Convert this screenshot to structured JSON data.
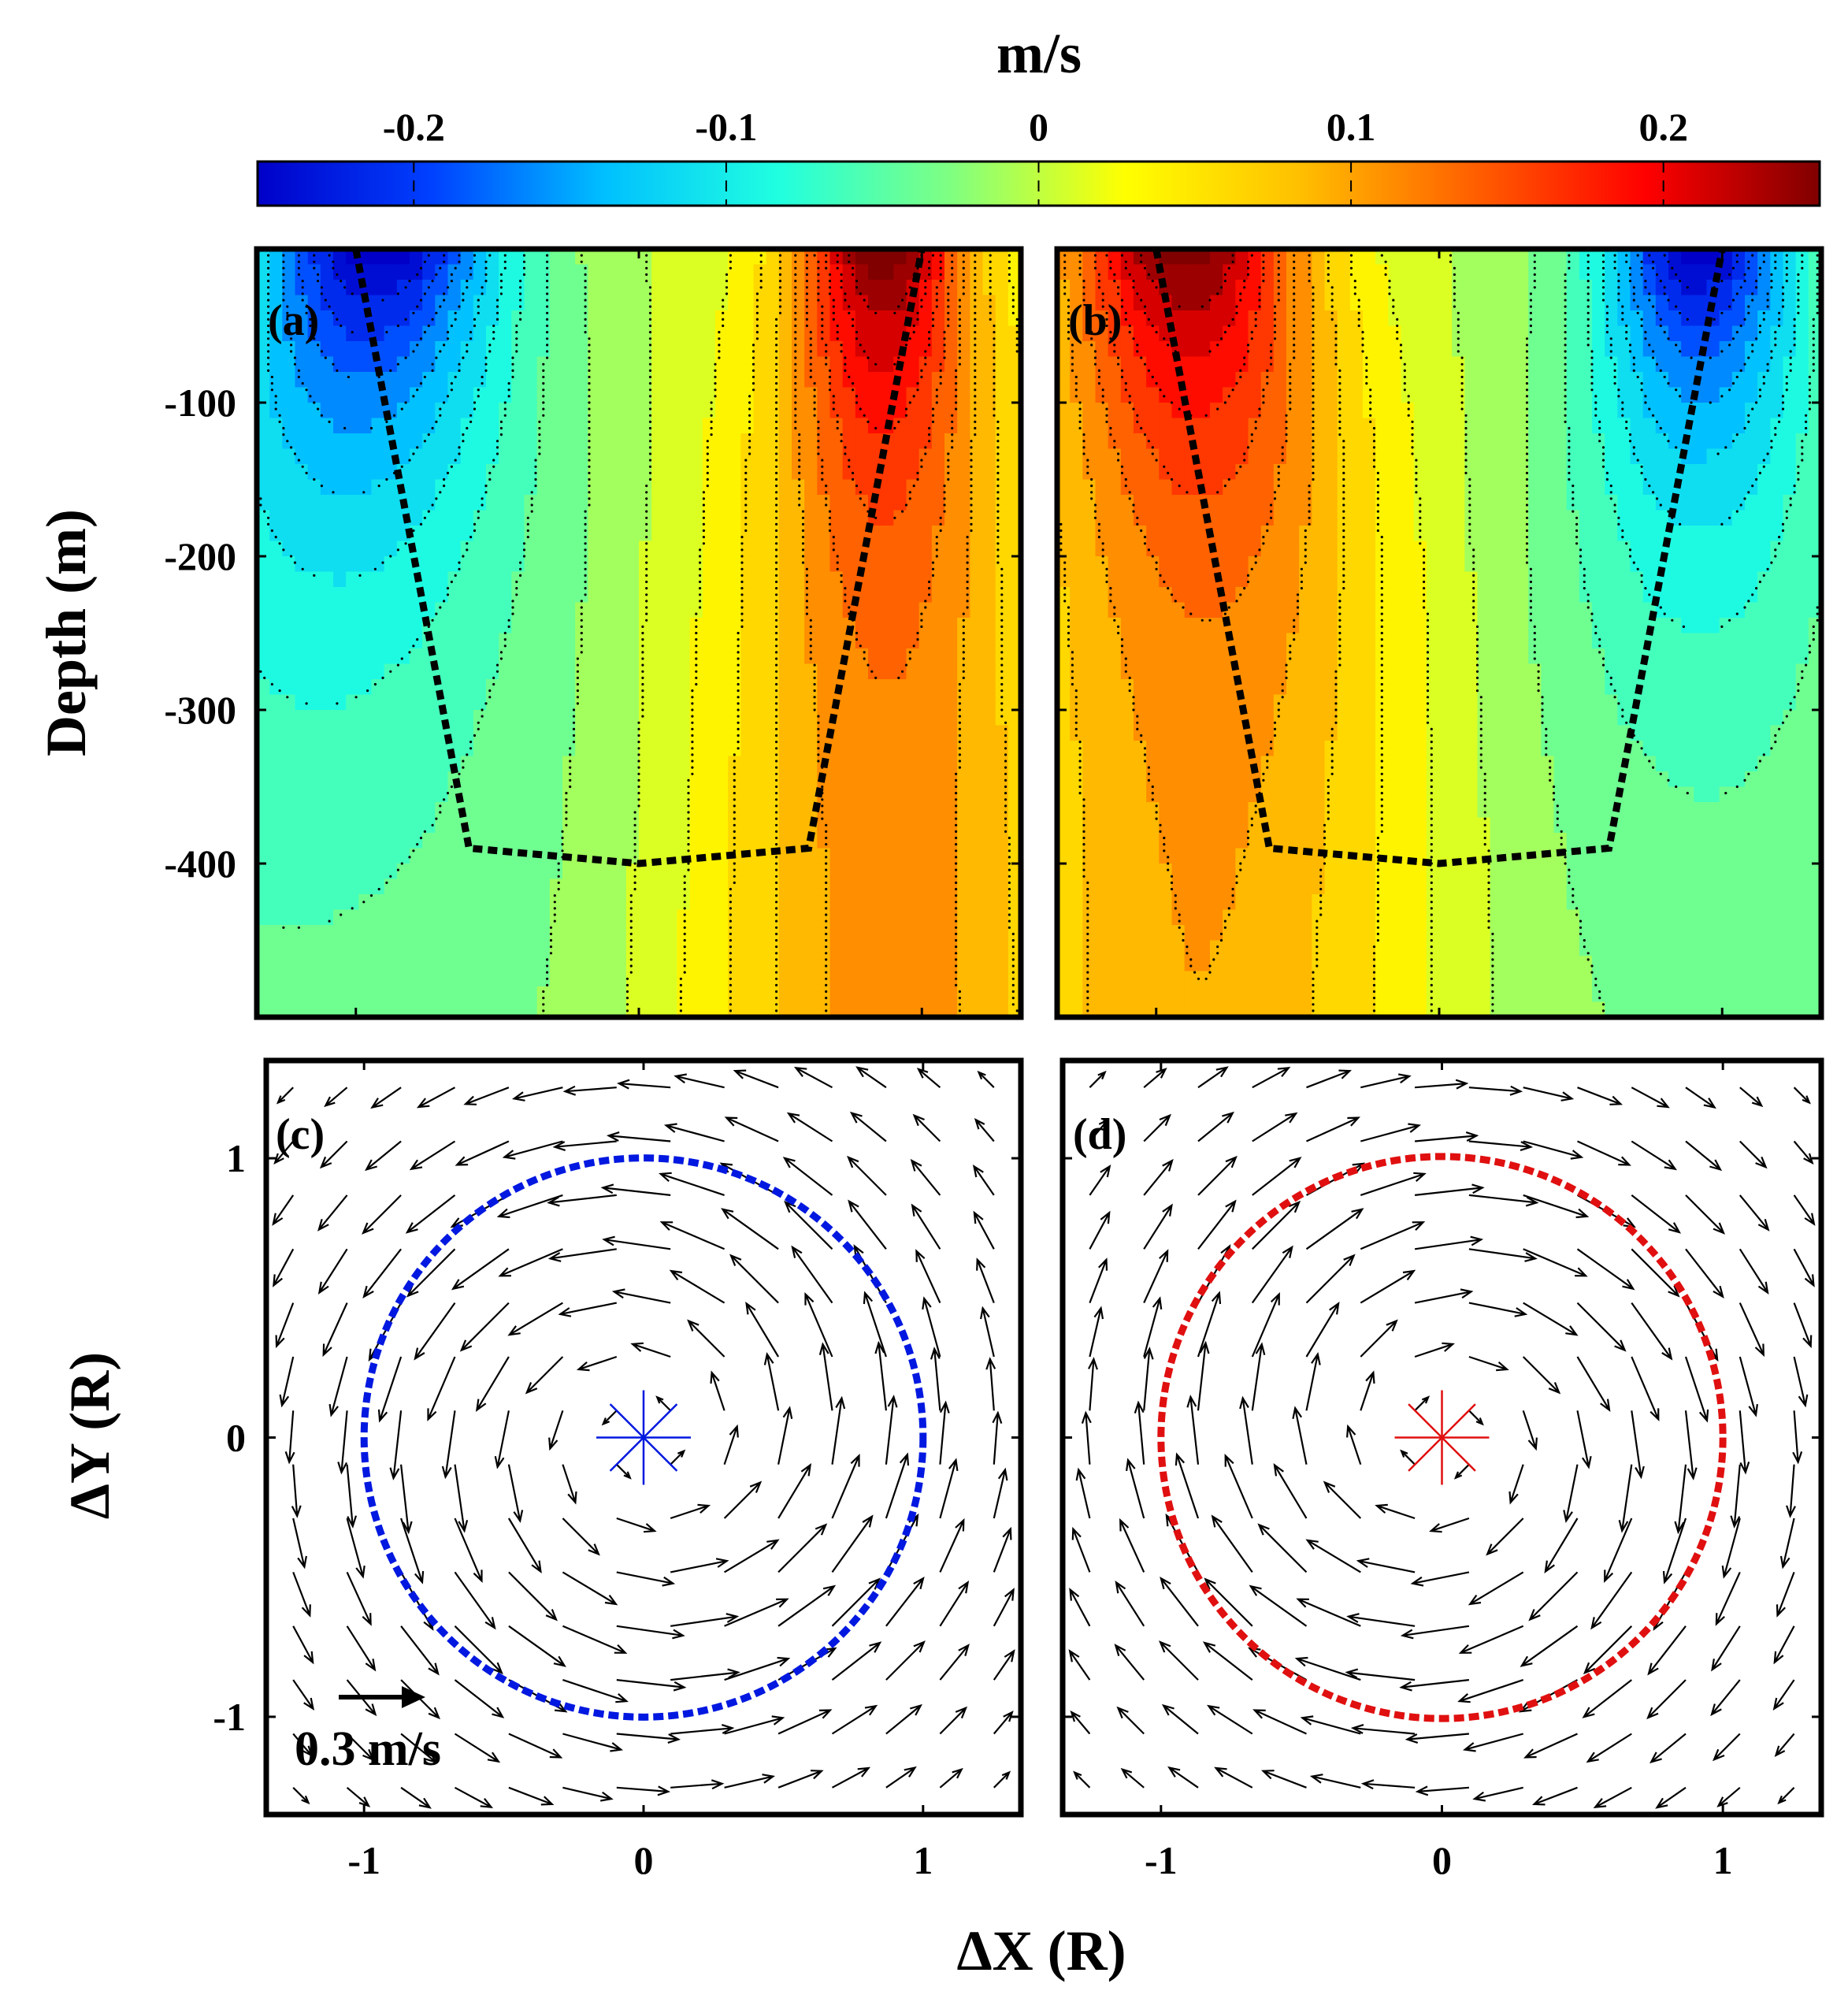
{
  "figure": {
    "colorbar": {
      "unit": "m/s",
      "ticks": [
        "-0.2",
        "-0.1",
        "0",
        "0.1",
        "0.2"
      ],
      "tick_values": [
        -0.2,
        -0.1,
        0,
        0.1,
        0.2
      ],
      "range": [
        -0.25,
        0.25
      ],
      "colormap": "jet",
      "colors": [
        "#0000c8",
        "#0040ff",
        "#00c0ff",
        "#20ffe0",
        "#80ff80",
        "#ffff00",
        "#ffc000",
        "#ff6000",
        "#ff0000",
        "#800000"
      ]
    },
    "panels": {
      "a": "(a)",
      "b": "(b)",
      "c": "(c)",
      "d": "(d)"
    },
    "ylabel_top": "Depth (m)",
    "ylabel_bottom": "ΔY (R)",
    "xlabel": "ΔX (R)",
    "depth_ticks": [
      "-100",
      "-200",
      "-300",
      "-400"
    ],
    "dy_ticks": [
      "1",
      "0",
      "-1"
    ],
    "dx_ticks": [
      "-1",
      "0",
      "1"
    ],
    "scale_label": "0.3 m/s",
    "circle_colors": {
      "c": "#0018e0",
      "d": "#e01010"
    }
  },
  "chart_data": [
    {
      "type": "heatmap",
      "panel": "(a)",
      "title": "",
      "xlabel": "",
      "ylabel": "Depth (m)",
      "xlim": [
        -1.35,
        1.35
      ],
      "ylim": [
        -500,
        0
      ],
      "zlim": [
        -0.25,
        0.25
      ],
      "field": "velocity anomaly (m/s)",
      "description_values": {
        "min_near_surface_at_x": -0.9,
        "min_value": -0.25,
        "max_near_surface_at_x": 0.85,
        "max_value": 0.25
      },
      "dashed_boundary": {
        "x": [
          -1.0,
          -0.6,
          0.0,
          0.6,
          1.0
        ],
        "depth": [
          0,
          -390,
          -400,
          -390,
          0
        ]
      }
    },
    {
      "type": "heatmap",
      "panel": "(b)",
      "title": "",
      "xlabel": "",
      "ylabel": "",
      "xlim": [
        -1.35,
        1.35
      ],
      "ylim": [
        -500,
        0
      ],
      "zlim": [
        -0.25,
        0.25
      ],
      "field": "velocity anomaly (m/s)",
      "description_values": {
        "max_near_surface_at_x": -0.9,
        "max_value": 0.25,
        "min_near_surface_at_x": 0.9,
        "min_value": -0.25
      },
      "dashed_boundary": {
        "x": [
          -1.0,
          -0.6,
          0.0,
          0.6,
          1.0
        ],
        "depth": [
          0,
          -390,
          -400,
          -390,
          0
        ]
      }
    },
    {
      "type": "scatter",
      "subtype": "quiver",
      "panel": "(c)",
      "xlabel": "ΔX (R)",
      "ylabel": "ΔY (R)",
      "xlim": [
        -1.35,
        1.35
      ],
      "ylim": [
        -1.35,
        1.35
      ],
      "rotation": "counterclockwise",
      "max_speed_ms": 0.3,
      "speed_radius_R": 0.8,
      "circle_radius_R": 1.0,
      "center": [
        0,
        0
      ],
      "scale_arrow_ms": 0.3
    },
    {
      "type": "scatter",
      "subtype": "quiver",
      "panel": "(d)",
      "xlabel": "ΔX (R)",
      "ylabel": "",
      "xlim": [
        -1.35,
        1.35
      ],
      "ylim": [
        -1.35,
        1.35
      ],
      "rotation": "clockwise",
      "max_speed_ms": 0.3,
      "speed_radius_R": 0.8,
      "circle_radius_R": 1.0,
      "center": [
        0,
        0
      ]
    }
  ]
}
